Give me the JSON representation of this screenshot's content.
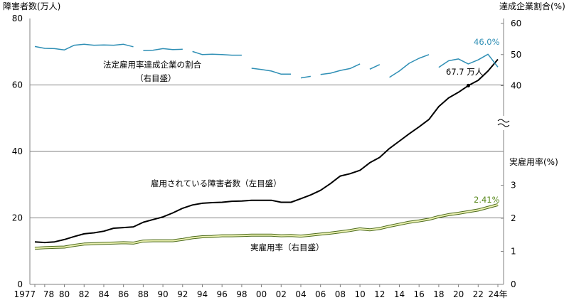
{
  "chart_data": {
    "type": "line",
    "left_axis_title": "障害者数(万人)",
    "right_axis_title_top": "達成企業割合(%)",
    "right_axis_title_bottom": "実雇用率(%)",
    "left_ticks": [
      "0",
      "20",
      "40",
      "60",
      "80"
    ],
    "right_ticks_top": [
      "40",
      "50",
      "60"
    ],
    "right_ticks_bottom": [
      "0",
      "1",
      "2",
      "3"
    ],
    "x_ticks": [
      "1977",
      "78",
      "80",
      "82",
      "84",
      "86",
      "88",
      "90",
      "92",
      "94",
      "96",
      "98",
      "00",
      "02",
      "04",
      "06",
      "08",
      "10",
      "12",
      "14",
      "16",
      "18",
      "20",
      "22",
      "24年"
    ],
    "x_tick_years": [
      1977,
      1978,
      1980,
      1982,
      1984,
      1986,
      1988,
      1990,
      1992,
      1994,
      1996,
      1998,
      2000,
      2002,
      2004,
      2006,
      2008,
      2010,
      2012,
      2014,
      2016,
      2018,
      2020,
      2022,
      2024
    ],
    "ylim_left": [
      0,
      80
    ],
    "ylim_right_top": [
      40,
      60
    ],
    "ylim_right_bottom": [
      0,
      3
    ],
    "grid": true,
    "annotations": {
      "share_label_line1": "法定雇用率達成企業の割合",
      "share_label_line2": "（右目盛）",
      "employed_label": "雇用されている障害者数（左目盛）",
      "rate_label": "実雇用率（右目盛）",
      "share_end": "46.0%",
      "employed_end": "67.7 万人",
      "rate_end": "2.41%"
    },
    "colors": {
      "share": "#2f8fb5",
      "employed": "#000000",
      "rate_fill": "#eaf0b0",
      "rate_edge": "#4d6b1e",
      "share_end_label": "#2f8fb5",
      "rate_end_label": "#5a8a1e",
      "grid": "#808080"
    },
    "series": [
      {
        "name": "雇用されている障害者数",
        "axis": "left",
        "x": [
          1977,
          1978,
          1979,
          1980,
          1981,
          1982,
          1983,
          1984,
          1985,
          1986,
          1987,
          1988,
          1989,
          1990,
          1991,
          1992,
          1993,
          1994,
          1995,
          1996,
          1997,
          1998,
          1999,
          2000,
          2001,
          2002,
          2003,
          2004,
          2005,
          2006,
          2007,
          2008,
          2009,
          2010,
          2011,
          2012,
          2013,
          2014,
          2015,
          2016,
          2017,
          2018,
          2019,
          2020,
          2021,
          2022,
          2023,
          2024
        ],
        "values": [
          12.8,
          12.6,
          12.8,
          13.5,
          14.4,
          15.2,
          15.5,
          16.0,
          16.9,
          17.1,
          17.3,
          18.7,
          19.5,
          20.3,
          21.5,
          22.9,
          23.9,
          24.4,
          24.6,
          24.7,
          25.0,
          25.1,
          25.3,
          25.3,
          25.3,
          24.7,
          24.7,
          25.8,
          26.9,
          28.3,
          30.3,
          32.6,
          33.3,
          34.3,
          36.6,
          38.2,
          40.9,
          43.1,
          45.3,
          47.4,
          49.6,
          53.5,
          56.1,
          57.8,
          59.8,
          61.4,
          64.2,
          67.7
        ]
      },
      {
        "name": "実雇用率",
        "axis": "right_bottom",
        "x": [
          1977,
          1978,
          1979,
          1980,
          1981,
          1982,
          1983,
          1984,
          1985,
          1986,
          1987,
          1988,
          1989,
          1990,
          1991,
          1992,
          1993,
          1994,
          1995,
          1996,
          1997,
          1998,
          1999,
          2000,
          2001,
          2002,
          2003,
          2004,
          2005,
          2006,
          2007,
          2008,
          2009,
          2010,
          2011,
          2012,
          2013,
          2014,
          2015,
          2016,
          2017,
          2018,
          2019,
          2020,
          2021,
          2022,
          2023,
          2024
        ],
        "values": [
          1.09,
          1.11,
          1.12,
          1.13,
          1.18,
          1.22,
          1.23,
          1.24,
          1.25,
          1.26,
          1.25,
          1.31,
          1.32,
          1.32,
          1.32,
          1.36,
          1.41,
          1.44,
          1.45,
          1.47,
          1.47,
          1.48,
          1.49,
          1.49,
          1.49,
          1.47,
          1.48,
          1.46,
          1.49,
          1.52,
          1.55,
          1.59,
          1.63,
          1.68,
          1.65,
          1.69,
          1.76,
          1.82,
          1.88,
          1.92,
          1.97,
          2.05,
          2.11,
          2.15,
          2.2,
          2.25,
          2.33,
          2.41
        ]
      },
      {
        "name": "法定雇用率達成企業の割合",
        "axis": "right_top",
        "segments": [
          {
            "x": [
              1977,
              1978,
              1979,
              1980,
              1981,
              1982,
              1983,
              1984,
              1985,
              1986,
              1987
            ],
            "values": [
              52.6,
              52.0,
              51.9,
              51.5,
              53.0,
              53.3,
              53.0,
              53.1,
              53.0,
              53.3,
              52.5
            ]
          },
          {
            "x": [
              1988,
              1989,
              1990,
              1991,
              1992
            ],
            "values": [
              51.3,
              51.4,
              51.9,
              51.6,
              51.7
            ]
          },
          {
            "x": [
              1993,
              1994,
              1995,
              1996,
              1997,
              1998
            ],
            "values": [
              51.0,
              50.0,
              50.1,
              50.0,
              49.8,
              49.8
            ]
          },
          {
            "x": [
              1999,
              2000,
              2001,
              2002,
              2003
            ],
            "values": [
              45.6,
              45.2,
              44.7,
              43.7,
              43.7
            ]
          },
          {
            "x": [
              2004,
              2005
            ],
            "values": [
              42.5,
              43.0
            ]
          },
          {
            "x": [
              2006,
              2007,
              2008,
              2009,
              2010
            ],
            "values": [
              43.6,
              44.0,
              44.9,
              45.5,
              47.0
            ]
          },
          {
            "x": [
              2011,
              2012
            ],
            "values": [
              45.3,
              46.8
            ]
          },
          {
            "x": [
              2013,
              2014,
              2015,
              2016,
              2017
            ],
            "values": [
              42.7,
              44.7,
              47.2,
              48.8,
              50.0
            ]
          },
          {
            "x": [
              2018,
              2019,
              2020,
              2021,
              2022,
              2023,
              2024
            ],
            "values": [
              45.9,
              48.0,
              48.6,
              47.0,
              48.3,
              50.1,
              46.0
            ]
          }
        ]
      }
    ]
  }
}
